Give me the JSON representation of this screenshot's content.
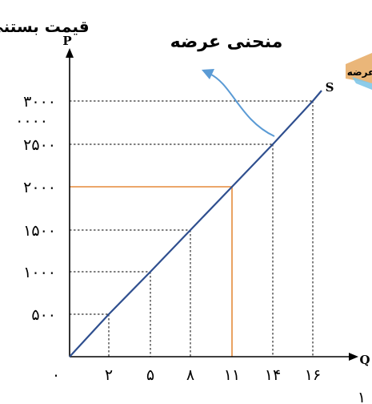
{
  "chart_data": {
    "type": "line",
    "title": "منحنی عرضه",
    "ylabel_title": "قیمت بستنی",
    "ylabel": "P",
    "xlabel": "Q",
    "curve_label": "S",
    "side_tag": "عرضه",
    "origin_label": "۰",
    "bottom_digit": "۱",
    "x_ticks": [
      {
        "value": 2,
        "label": "۲"
      },
      {
        "value": 5,
        "label": "۵"
      },
      {
        "value": 8,
        "label": "۸"
      },
      {
        "value": 11,
        "label": "۱۱"
      },
      {
        "value": 14,
        "label": "۱۴"
      },
      {
        "value": 16,
        "label": "۱۶"
      }
    ],
    "y_ticks": [
      {
        "value": 500,
        "label": "۵۰۰"
      },
      {
        "value": 1000,
        "label": "۱۰۰۰"
      },
      {
        "value": 1500,
        "label": "۱۵۰۰"
      },
      {
        "value": 2000,
        "label": "۲۰۰۰"
      },
      {
        "value": 2500,
        "label": "۲۵۰۰"
      },
      {
        "value": 3000,
        "label": "۳۰۰۰"
      }
    ],
    "extra_y_label": "۰۰۰۰",
    "series": [
      {
        "points": [
          {
            "x": 0,
            "y": 0
          },
          {
            "x": 2,
            "y": 500
          },
          {
            "x": 5,
            "y": 1000
          },
          {
            "x": 8,
            "y": 1500
          },
          {
            "x": 11,
            "y": 2000
          },
          {
            "x": 14,
            "y": 2500
          },
          {
            "x": 16,
            "y": 3000
          }
        ],
        "color": "#2f4f8f"
      }
    ],
    "highlight": {
      "x": 11,
      "y": 2000,
      "color": "#e58a3a"
    },
    "grid": "dashed guides to each point",
    "arrow_color": "#5b9bd5"
  }
}
